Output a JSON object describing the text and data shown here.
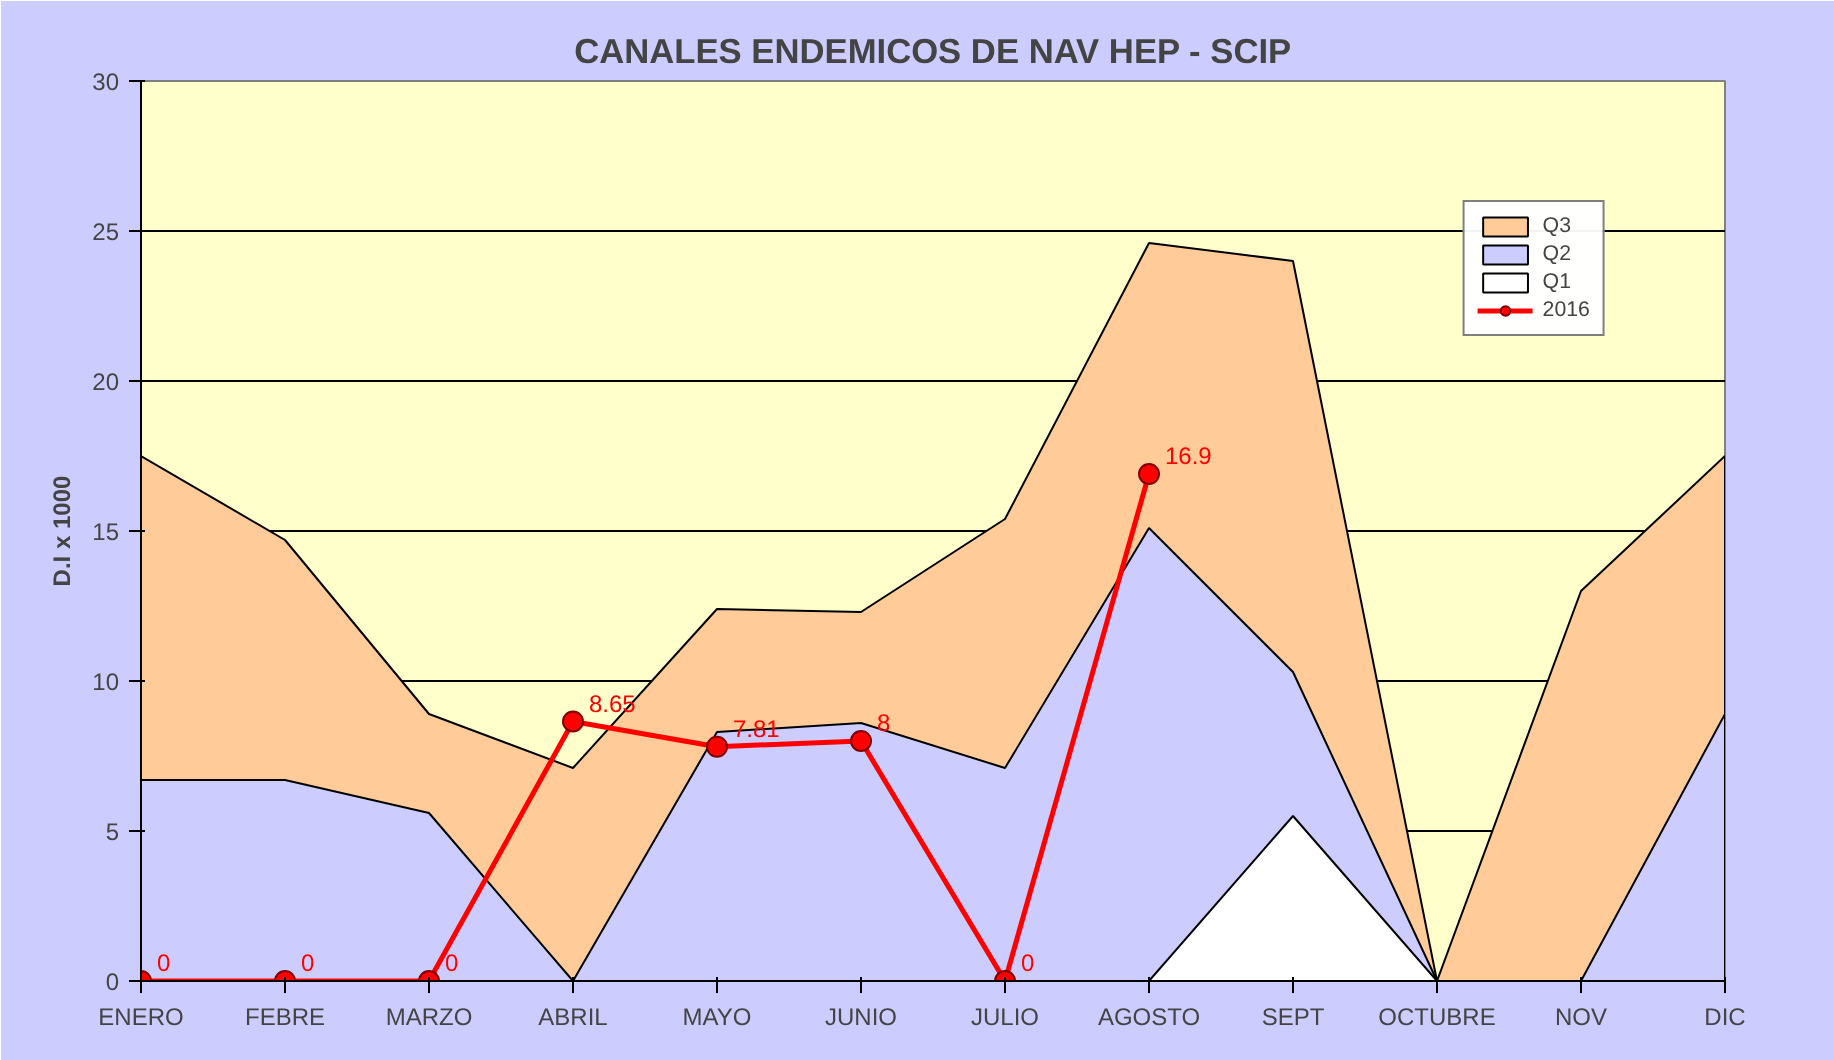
{
  "chart_data": {
    "type": "area",
    "title": "CANALES ENDEMICOS DE NAV HEP - SCIP",
    "ylabel": "D.I x 1000",
    "categories": [
      "ENERO",
      "FEBRE",
      "MARZO",
      "ABRIL",
      "MAYO",
      "JUNIO",
      "JULIO",
      "AGOSTO",
      "SEPT",
      "OCTUBRE",
      "NOV",
      "DIC"
    ],
    "series": [
      {
        "name": "Q3",
        "color": "#ffcc99",
        "values": [
          17.5,
          14.7,
          8.9,
          7.1,
          12.4,
          12.3,
          15.4,
          24.6,
          24.0,
          0,
          13.0,
          17.5
        ]
      },
      {
        "name": "Q2",
        "color": "#ccccff",
        "values": [
          6.7,
          6.7,
          5.6,
          0,
          8.3,
          8.6,
          7.1,
          15.1,
          10.3,
          0,
          0,
          8.9
        ]
      },
      {
        "name": "Q1",
        "color": "#ffffff",
        "values": [
          0,
          0,
          0,
          0,
          0,
          0,
          0,
          0,
          5.5,
          0,
          0,
          0
        ]
      },
      {
        "name": "2016",
        "type": "line",
        "color": "#ff0000",
        "marker": "circle",
        "line_style": "solid",
        "values": [
          0,
          0,
          0,
          8.65,
          7.81,
          8,
          0,
          16.9,
          null,
          null,
          null,
          null
        ],
        "value_labels": [
          "0",
          "0",
          "0",
          "8.65",
          "7.81",
          "8",
          "0",
          "16.9",
          null,
          null,
          null,
          null
        ]
      }
    ],
    "ylim": [
      0,
      30
    ],
    "yticks": [
      0,
      5,
      10,
      15,
      20,
      25,
      30
    ],
    "grid": "y",
    "legend": "top right"
  }
}
